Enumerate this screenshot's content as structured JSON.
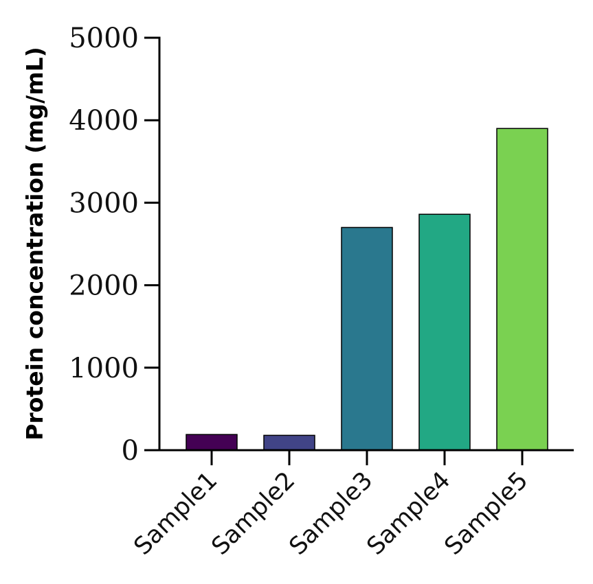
{
  "chart_data": {
    "type": "bar",
    "title": "",
    "xlabel": "",
    "ylabel": "Protein concentration (mg/mL)",
    "categories": [
      "Sample1",
      "Sample2",
      "Sample3",
      "Sample4",
      "Sample5"
    ],
    "values": [
      190,
      180,
      2700,
      2860,
      3900
    ],
    "colors": [
      "#440154",
      "#414487",
      "#2a788e",
      "#22a884",
      "#7ad151"
    ],
    "ylim": [
      0,
      5000
    ],
    "yticks": [
      0,
      1000,
      2000,
      3000,
      4000,
      5000
    ],
    "ytick_labels": [
      "0",
      "1000",
      "2000",
      "3000",
      "4000",
      "5000"
    ],
    "grid": false,
    "legend": "none"
  }
}
